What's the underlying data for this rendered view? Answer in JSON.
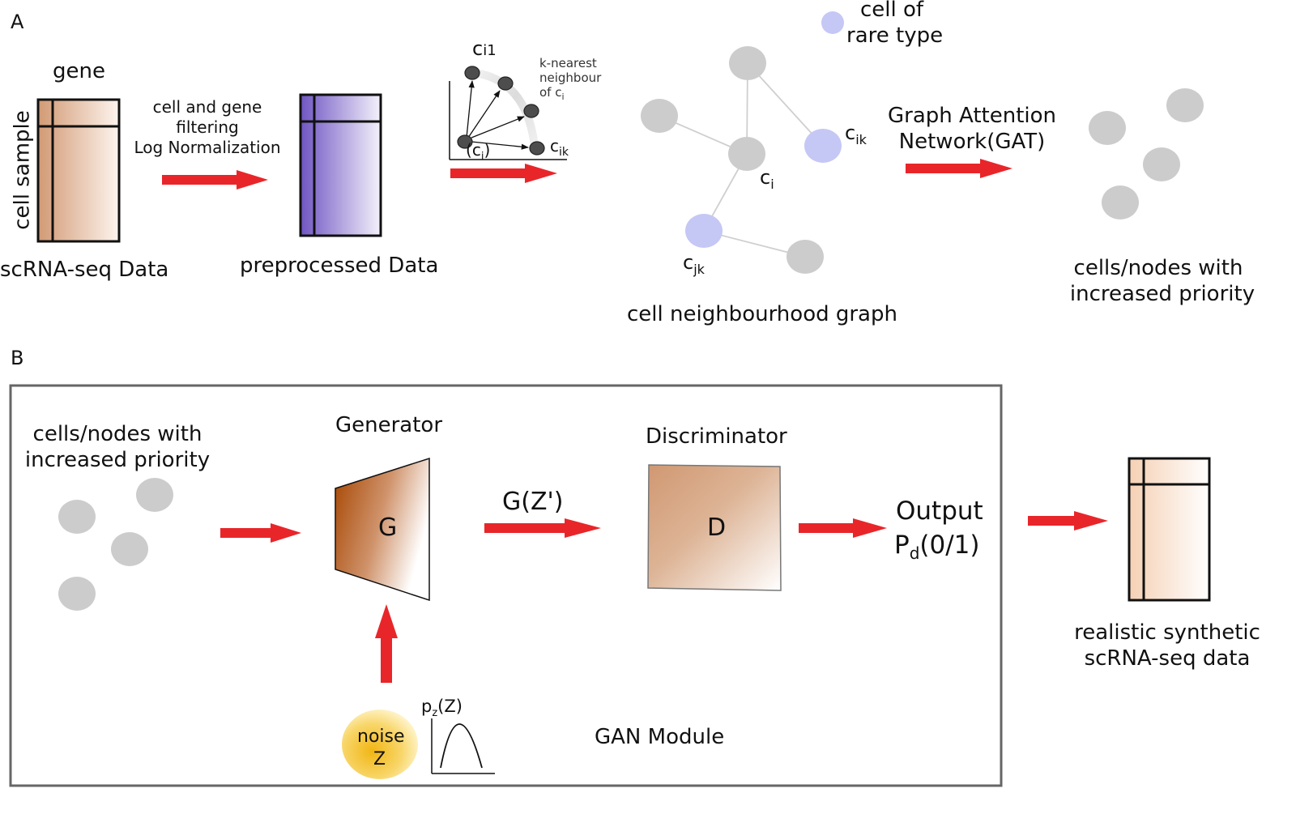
{
  "panel_a": {
    "label": "A",
    "matrix_col_label": "gene",
    "matrix_row_label": "cell sample",
    "raw_caption": "scRNA-seq Data",
    "step1_lines": [
      "cell and gene",
      "filtering",
      "Log Normalization"
    ],
    "preprocessed_caption": "preprocessed Data",
    "knn": {
      "top_point": "c",
      "top_point_sub": "i1",
      "center_point": "c",
      "center_point_sub": "i",
      "right_point": "c",
      "right_point_sub": "ik",
      "note_lines": [
        "k-nearest",
        "neighbour",
        "of c"
      ],
      "note_sub": "i"
    },
    "legend_rare_lines": [
      "cell of",
      "rare type"
    ],
    "graph": {
      "node_ik": "c",
      "node_ik_sub": "ik",
      "node_i": "c",
      "node_i_sub": "i",
      "node_jk": "c",
      "node_jk_sub": "jk",
      "caption": "cell neighbourhood graph"
    },
    "gat_lines": [
      "Graph Attention",
      "Network(GAT)"
    ],
    "priority_lines": [
      "cells/nodes with",
      "increased priority"
    ]
  },
  "panel_b": {
    "label": "B",
    "input_lines": [
      "cells/nodes with",
      "increased priority"
    ],
    "generator_title": "Generator",
    "generator_letter": "G",
    "gz_label": "G(Z')",
    "discriminator_title": "Discriminator",
    "discriminator_letter": "D",
    "output_title": "Output",
    "output_p": "P",
    "output_p_sub": "d",
    "output_p_rest": "(0/1)",
    "noise_lines": [
      "noise",
      "Z"
    ],
    "pz_p": "p",
    "pz_sub": "z",
    "pz_rest": "(Z)",
    "module_label": "GAN Module",
    "synthetic_lines": [
      "realistic synthetic",
      "scRNA-seq data"
    ]
  },
  "colors": {
    "arrow": "#e8262a",
    "node_gray": "#cccccc",
    "node_rare": "#c5c7f5",
    "raw_matrix_tint": "#d29a74",
    "preprocessed_tint": "#7a62c8",
    "generator_tint": "#a64500",
    "noise_gold": "#f2bc1a"
  }
}
